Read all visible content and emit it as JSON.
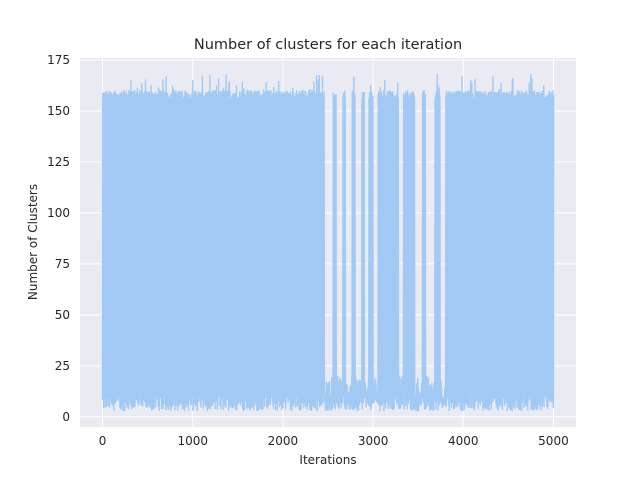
{
  "chart_data": {
    "type": "line",
    "title": "Number of clusters for each iteration",
    "xlabel": "Iterations",
    "ylabel": "Number of Clusters",
    "xlim": [
      -250,
      5250
    ],
    "ylim": [
      -5,
      176
    ],
    "xticks": [
      0,
      1000,
      2000,
      3000,
      4000,
      5000
    ],
    "yticks": [
      0,
      25,
      50,
      75,
      100,
      125,
      150,
      175
    ],
    "grid": true,
    "background": "#eaeaf2",
    "line_color": "#a1c9f4",
    "x_start": 0,
    "x_end": 5000,
    "approx_low_value": 7,
    "approx_high_value": 158,
    "approx_max_value": 168,
    "gaps": [
      [
        2460,
        2550
      ],
      [
        2590,
        2660
      ],
      [
        2690,
        2760
      ],
      [
        2800,
        2870
      ],
      [
        2900,
        2950
      ],
      [
        3000,
        3050
      ],
      [
        3280,
        3330
      ],
      [
        3460,
        3540
      ],
      [
        3580,
        3680
      ],
      [
        3740,
        3800
      ]
    ]
  }
}
